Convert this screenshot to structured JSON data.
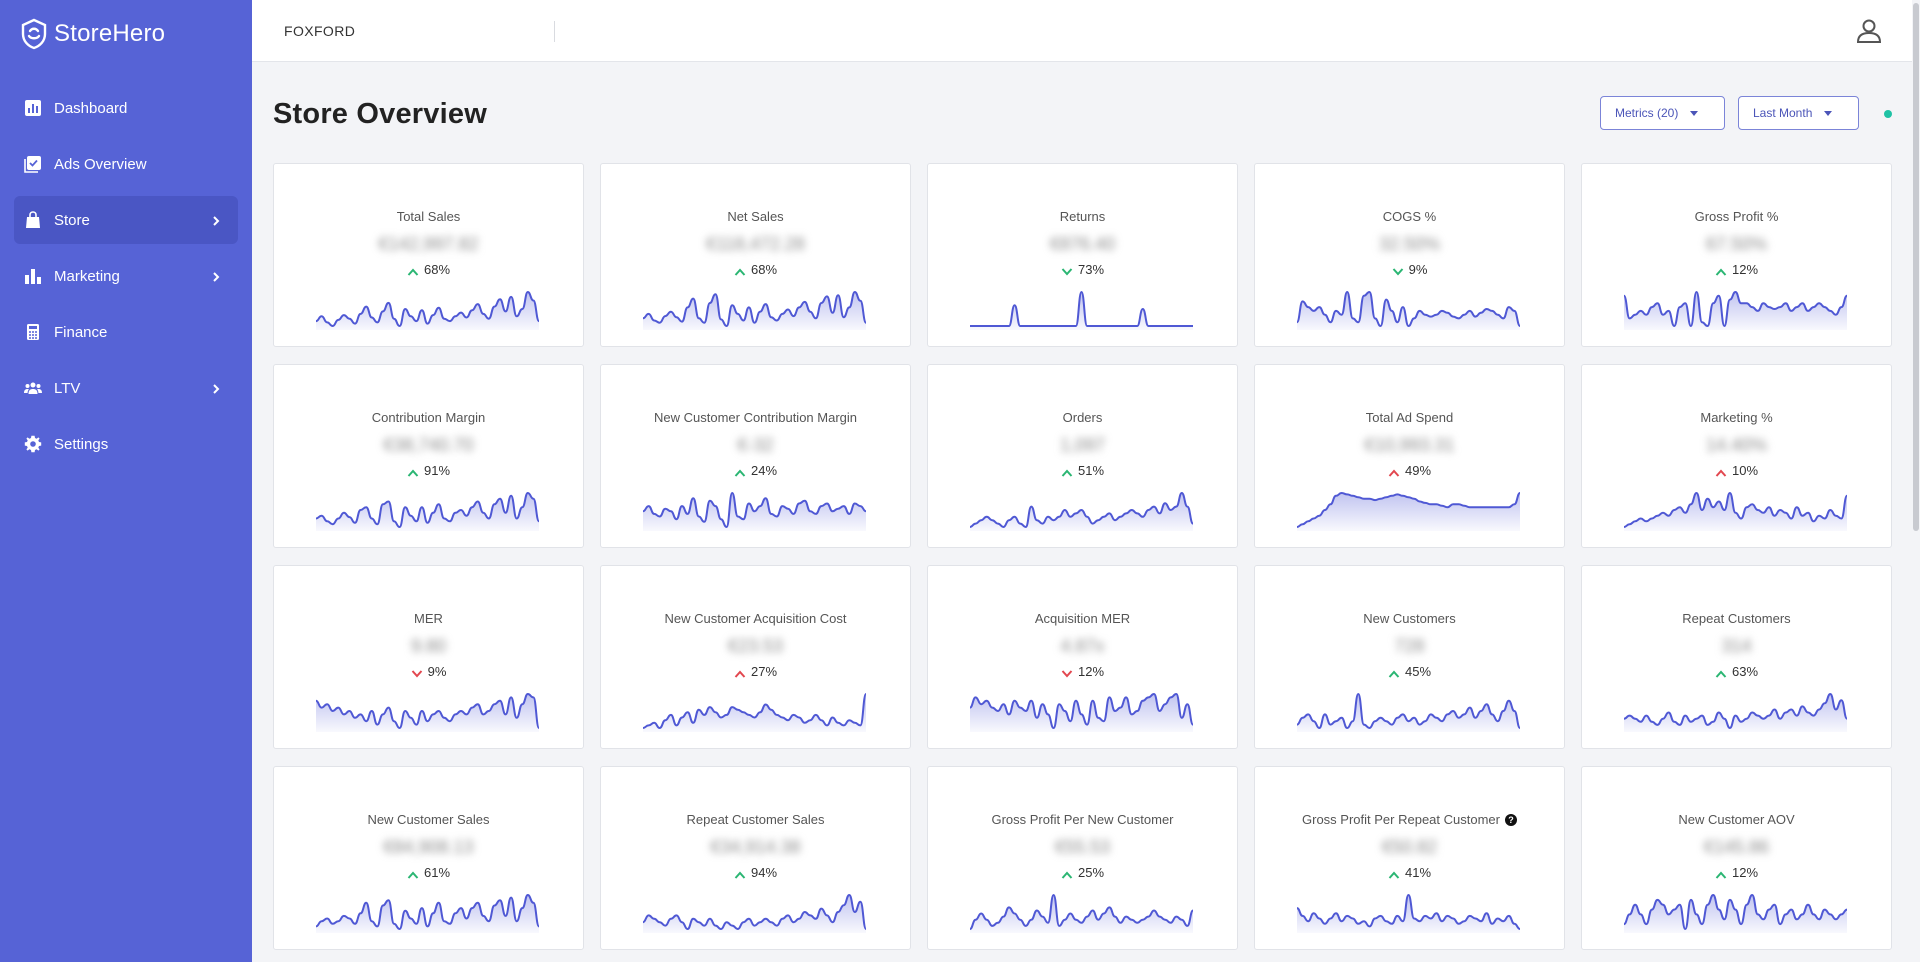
{
  "app": {
    "name": "StoreHero"
  },
  "sidebar": {
    "items": [
      {
        "label": "Dashboard",
        "icon": "chart-square-icon",
        "active": false,
        "has_children": false
      },
      {
        "label": "Ads Overview",
        "icon": "checklist-icon",
        "active": false,
        "has_children": false
      },
      {
        "label": "Store",
        "icon": "bag-icon",
        "active": true,
        "has_children": true
      },
      {
        "label": "Marketing",
        "icon": "bar-chart-icon",
        "active": false,
        "has_children": true
      },
      {
        "label": "Finance",
        "icon": "calculator-icon",
        "active": false,
        "has_children": false
      },
      {
        "label": "LTV",
        "icon": "users-icon",
        "active": false,
        "has_children": true
      },
      {
        "label": "Settings",
        "icon": "gear-icon",
        "active": false,
        "has_children": false
      }
    ]
  },
  "topbar": {
    "store_name": "FOXFORD"
  },
  "page": {
    "title": "Store Overview",
    "metrics_dropdown": "Metrics (20)",
    "range_dropdown": "Last Month"
  },
  "colors": {
    "sidebar": "#5663d6",
    "accent": "#4b55b8",
    "up_good": "#2bb673",
    "up_bad": "#e2474f",
    "status": "#1fc2a5"
  },
  "cards": [
    {
      "title": "Total Sales",
      "value": "€142,997.82",
      "change": "68%",
      "direction": "up",
      "tone": "good",
      "help": false,
      "spark": [
        10,
        14,
        9,
        6,
        11,
        15,
        12,
        8,
        16,
        22,
        13,
        9,
        18,
        25,
        12,
        6,
        20,
        14,
        10,
        19,
        8,
        15,
        21,
        12,
        10,
        14,
        17,
        13,
        19,
        24,
        16,
        12,
        22,
        28,
        18,
        30,
        14,
        20,
        34,
        27,
        10
      ]
    },
    {
      "title": "Net Sales",
      "value": "€118,472.28",
      "change": "68%",
      "direction": "up",
      "tone": "good",
      "help": false,
      "spark": [
        12,
        16,
        10,
        8,
        14,
        18,
        13,
        9,
        22,
        30,
        12,
        8,
        26,
        34,
        11,
        5,
        24,
        16,
        10,
        22,
        8,
        18,
        25,
        13,
        10,
        16,
        20,
        14,
        22,
        27,
        18,
        12,
        26,
        32,
        17,
        33,
        13,
        22,
        36,
        28,
        8
      ]
    },
    {
      "title": "Returns",
      "value": "€876.40",
      "change": "73%",
      "direction": "down",
      "tone": "good",
      "help": false,
      "spark": [
        0,
        0,
        0,
        0,
        0,
        0,
        0,
        0,
        22,
        0,
        0,
        0,
        0,
        0,
        0,
        0,
        0,
        0,
        0,
        0,
        36,
        0,
        0,
        0,
        0,
        0,
        0,
        0,
        0,
        0,
        0,
        18,
        0,
        0,
        0,
        0,
        0,
        0,
        0,
        0,
        0
      ]
    },
    {
      "title": "COGS %",
      "value": "32.50%",
      "change": "9%",
      "direction": "down",
      "tone": "good",
      "help": false,
      "spark": [
        14,
        25,
        22,
        20,
        22,
        18,
        14,
        20,
        18,
        30,
        16,
        14,
        28,
        30,
        16,
        12,
        26,
        20,
        14,
        22,
        12,
        16,
        20,
        18,
        17,
        18,
        20,
        19,
        17,
        16,
        18,
        20,
        17,
        19,
        21,
        20,
        18,
        16,
        22,
        20,
        12
      ]
    },
    {
      "title": "Gross Profit %",
      "value": "67.50%",
      "change": "12%",
      "direction": "up",
      "tone": "good",
      "help": false,
      "spark": [
        26,
        14,
        16,
        18,
        16,
        20,
        22,
        16,
        18,
        10,
        20,
        22,
        10,
        28,
        12,
        10,
        22,
        26,
        10,
        24,
        28,
        22,
        22,
        20,
        18,
        22,
        20,
        19,
        20,
        22,
        18,
        20,
        22,
        18,
        20,
        22,
        20,
        18,
        16,
        20,
        26
      ]
    },
    {
      "title": "Contribution Margin",
      "value": "€38,740.70",
      "change": "91%",
      "direction": "up",
      "tone": "good",
      "help": false,
      "spark": [
        12,
        14,
        10,
        8,
        12,
        16,
        13,
        9,
        18,
        20,
        12,
        8,
        22,
        24,
        10,
        6,
        20,
        14,
        10,
        20,
        9,
        16,
        22,
        12,
        10,
        16,
        18,
        14,
        20,
        24,
        16,
        12,
        22,
        26,
        16,
        28,
        12,
        20,
        30,
        26,
        10
      ]
    },
    {
      "title": "New Customer Contribution Margin",
      "value": "€-32",
      "change": "24%",
      "direction": "up",
      "tone": "good",
      "help": false,
      "spark": [
        16,
        20,
        14,
        12,
        18,
        16,
        10,
        20,
        14,
        26,
        12,
        8,
        24,
        20,
        10,
        4,
        30,
        12,
        10,
        22,
        16,
        20,
        26,
        14,
        12,
        20,
        18,
        14,
        22,
        24,
        16,
        14,
        20,
        22,
        16,
        18,
        20,
        14,
        22,
        20,
        16
      ]
    },
    {
      "title": "Orders",
      "value": "1,097",
      "change": "51%",
      "direction": "up",
      "tone": "good",
      "help": false,
      "spark": [
        8,
        10,
        12,
        14,
        12,
        10,
        8,
        12,
        14,
        10,
        8,
        20,
        12,
        10,
        14,
        12,
        14,
        18,
        14,
        16,
        18,
        14,
        10,
        12,
        14,
        16,
        12,
        14,
        16,
        18,
        16,
        14,
        18,
        20,
        16,
        22,
        18,
        20,
        28,
        20,
        10
      ]
    },
    {
      "title": "Total Ad Spend",
      "value": "€10,993.31",
      "change": "49%",
      "direction": "up",
      "tone": "bad",
      "help": false,
      "spark": [
        6,
        8,
        10,
        12,
        14,
        18,
        22,
        28,
        30,
        29,
        28,
        27,
        26,
        26,
        25,
        26,
        27,
        28,
        29,
        28,
        27,
        26,
        24,
        23,
        22,
        22,
        21,
        20,
        22,
        22,
        21,
        20,
        20,
        20,
        20,
        20,
        20,
        20,
        20,
        22,
        30
      ]
    },
    {
      "title": "Marketing %",
      "value": "14.40%",
      "change": "10%",
      "direction": "up",
      "tone": "bad",
      "help": false,
      "spark": [
        6,
        8,
        10,
        12,
        10,
        12,
        14,
        16,
        14,
        18,
        20,
        16,
        22,
        30,
        18,
        26,
        20,
        24,
        18,
        30,
        16,
        12,
        20,
        22,
        18,
        16,
        20,
        14,
        18,
        16,
        12,
        20,
        14,
        16,
        10,
        14,
        12,
        18,
        14,
        12,
        28
      ]
    },
    {
      "title": "MER",
      "value": "9.80",
      "change": "9%",
      "direction": "down",
      "tone": "bad",
      "help": false,
      "spark": [
        26,
        22,
        24,
        20,
        22,
        18,
        20,
        16,
        18,
        14,
        20,
        12,
        18,
        22,
        14,
        10,
        20,
        16,
        12,
        20,
        14,
        18,
        20,
        16,
        14,
        18,
        20,
        18,
        22,
        24,
        18,
        20,
        24,
        26,
        18,
        28,
        16,
        24,
        30,
        28,
        10
      ]
    },
    {
      "title": "New Customer Acquisition Cost",
      "value": "€23.53",
      "change": "27%",
      "direction": "up",
      "tone": "bad",
      "help": false,
      "spark": [
        6,
        8,
        10,
        6,
        12,
        16,
        8,
        14,
        18,
        10,
        20,
        16,
        22,
        18,
        14,
        16,
        22,
        20,
        18,
        16,
        14,
        18,
        24,
        20,
        16,
        14,
        12,
        16,
        14,
        10,
        12,
        16,
        12,
        8,
        14,
        10,
        8,
        12,
        10,
        8,
        32
      ]
    },
    {
      "title": "Acquisition MER",
      "value": "4.87x",
      "change": "12%",
      "direction": "down",
      "tone": "bad",
      "help": false,
      "spark": [
        20,
        26,
        22,
        24,
        20,
        18,
        22,
        16,
        24,
        20,
        18,
        24,
        14,
        22,
        16,
        8,
        22,
        18,
        12,
        24,
        16,
        10,
        24,
        14,
        12,
        26,
        18,
        20,
        26,
        16,
        18,
        24,
        26,
        28,
        18,
        22,
        26,
        28,
        14,
        22,
        10
      ]
    },
    {
      "title": "New Customers",
      "value": "728",
      "change": "45%",
      "direction": "up",
      "tone": "good",
      "help": false,
      "spark": [
        10,
        14,
        16,
        12,
        8,
        16,
        10,
        12,
        14,
        8,
        12,
        28,
        10,
        8,
        12,
        14,
        12,
        10,
        14,
        16,
        12,
        14,
        10,
        12,
        16,
        14,
        12,
        16,
        18,
        14,
        16,
        20,
        14,
        18,
        22,
        16,
        12,
        18,
        24,
        18,
        8
      ]
    },
    {
      "title": "Repeat Customers",
      "value": "314",
      "change": "63%",
      "direction": "up",
      "tone": "good",
      "help": false,
      "spark": [
        14,
        16,
        14,
        12,
        16,
        12,
        10,
        14,
        18,
        12,
        10,
        16,
        12,
        14,
        16,
        10,
        12,
        18,
        14,
        8,
        16,
        12,
        14,
        18,
        16,
        14,
        16,
        20,
        14,
        18,
        20,
        16,
        22,
        18,
        16,
        20,
        24,
        30,
        20,
        26,
        14
      ]
    },
    {
      "title": "New Customer Sales",
      "value": "€84,908.13",
      "change": "61%",
      "direction": "up",
      "tone": "good",
      "help": false,
      "spark": [
        8,
        12,
        14,
        10,
        12,
        16,
        14,
        10,
        18,
        26,
        12,
        8,
        24,
        28,
        10,
        6,
        20,
        14,
        10,
        22,
        8,
        18,
        26,
        12,
        10,
        18,
        22,
        14,
        22,
        26,
        16,
        12,
        24,
        28,
        16,
        30,
        12,
        22,
        32,
        26,
        8
      ]
    },
    {
      "title": "Repeat Customer Sales",
      "value": "€34,914.38",
      "change": "94%",
      "direction": "up",
      "tone": "good",
      "help": false,
      "spark": [
        14,
        18,
        16,
        14,
        12,
        16,
        18,
        14,
        10,
        16,
        14,
        12,
        16,
        12,
        10,
        14,
        12,
        10,
        14,
        16,
        12,
        14,
        16,
        14,
        12,
        16,
        18,
        14,
        16,
        20,
        18,
        16,
        22,
        18,
        14,
        20,
        24,
        30,
        20,
        26,
        10
      ]
    },
    {
      "title": "Gross Profit Per New Customer",
      "value": "€55.53",
      "change": "25%",
      "direction": "up",
      "tone": "good",
      "help": false,
      "spark": [
        12,
        18,
        22,
        18,
        14,
        16,
        20,
        26,
        22,
        18,
        14,
        18,
        24,
        20,
        16,
        34,
        14,
        18,
        22,
        18,
        16,
        20,
        24,
        18,
        22,
        26,
        20,
        16,
        20,
        18,
        16,
        18,
        20,
        24,
        20,
        18,
        16,
        20,
        18,
        14,
        24
      ]
    },
    {
      "title": "Gross Profit Per Repeat Customer",
      "value": "€50.82",
      "change": "41%",
      "direction": "up",
      "tone": "good",
      "help": true,
      "spark": [
        26,
        20,
        16,
        22,
        18,
        14,
        18,
        22,
        16,
        20,
        18,
        14,
        16,
        12,
        18,
        20,
        16,
        14,
        20,
        16,
        36,
        18,
        16,
        20,
        18,
        22,
        16,
        20,
        18,
        14,
        16,
        20,
        18,
        16,
        22,
        14,
        18,
        16,
        20,
        14,
        10
      ]
    },
    {
      "title": "New Customer AOV",
      "value": "€145.86",
      "change": "12%",
      "direction": "up",
      "tone": "good",
      "help": false,
      "spark": [
        14,
        18,
        22,
        18,
        14,
        20,
        24,
        22,
        18,
        20,
        22,
        12,
        24,
        18,
        14,
        22,
        26,
        20,
        16,
        24,
        20,
        14,
        22,
        26,
        18,
        16,
        20,
        22,
        14,
        18,
        20,
        16,
        18,
        22,
        18,
        16,
        20,
        18,
        16,
        18,
        20
      ]
    }
  ]
}
